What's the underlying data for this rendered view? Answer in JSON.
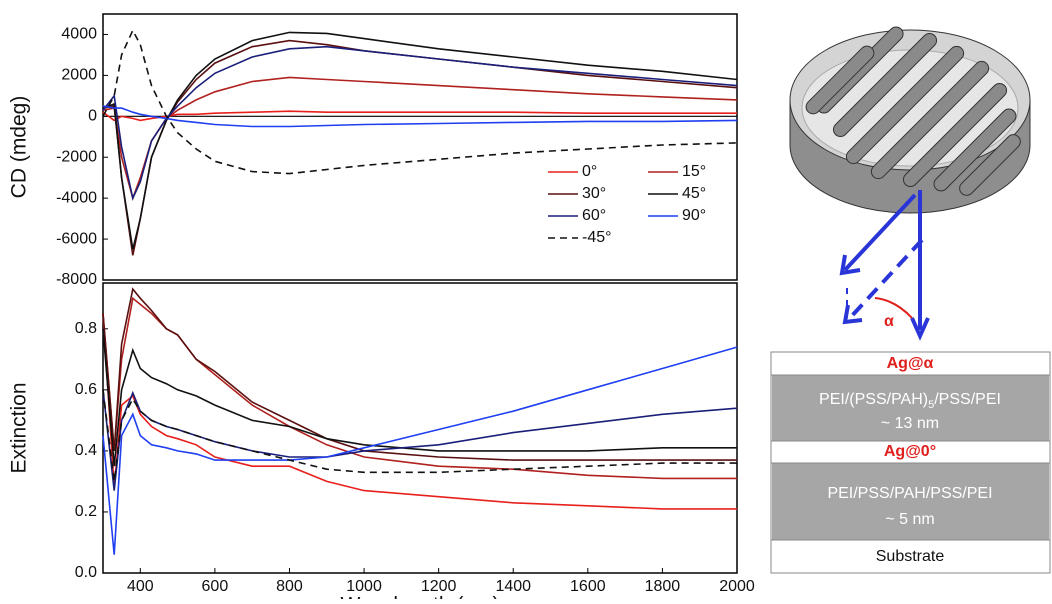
{
  "chart_data": [
    {
      "type": "line",
      "y_label": "CD (mdeg)",
      "x": [
        300,
        330,
        350,
        380,
        400,
        430,
        470,
        500,
        550,
        600,
        700,
        800,
        900,
        1000,
        1200,
        1400,
        1600,
        1800,
        2000
      ],
      "xlim": [
        300,
        2000
      ],
      "ylim": [
        -8000,
        5000
      ],
      "yticks": [
        -8000,
        -6000,
        -4000,
        -2000,
        0,
        2000,
        4000
      ],
      "legend": "lower-right",
      "series": [
        {
          "name": "0°",
          "color": "#e8201c",
          "values": [
            200,
            -200,
            0,
            -100,
            -200,
            -100,
            0,
            100,
            100,
            150,
            200,
            250,
            200,
            200,
            200,
            200,
            150,
            150,
            150
          ]
        },
        {
          "name": "15°",
          "color": "#b0211f",
          "values": [
            300,
            400,
            -2000,
            -4000,
            -3000,
            -1200,
            -100,
            300,
            800,
            1200,
            1700,
            1900,
            1800,
            1700,
            1500,
            1300,
            1100,
            950,
            800
          ]
        },
        {
          "name": "30°",
          "color": "#5a1010",
          "values": [
            400,
            500,
            -3000,
            -6800,
            -5000,
            -2000,
            -200,
            700,
            1800,
            2600,
            3400,
            3700,
            3500,
            3200,
            2800,
            2400,
            2000,
            1700,
            1400
          ]
        },
        {
          "name": "45°",
          "color": "#111111",
          "values": [
            400,
            600,
            -3000,
            -6500,
            -5000,
            -2000,
            -200,
            800,
            2000,
            2800,
            3700,
            4100,
            4050,
            3800,
            3300,
            2900,
            2500,
            2200,
            1800
          ]
        },
        {
          "name": "60°",
          "color": "#1a1f7a",
          "values": [
            300,
            1000,
            -1500,
            -4000,
            -3200,
            -1200,
            -100,
            500,
            1400,
            2100,
            2900,
            3300,
            3400,
            3200,
            2800,
            2400,
            2100,
            1800,
            1500
          ]
        },
        {
          "name": "90°",
          "color": "#1f3ff0",
          "values": [
            500,
            400,
            400,
            200,
            100,
            0,
            -100,
            -200,
            -300,
            -400,
            -500,
            -500,
            -450,
            -400,
            -350,
            -300,
            -250,
            -250,
            -200
          ]
        },
        {
          "name": "-45°",
          "color": "#111111",
          "line_style": "dashed",
          "values": [
            0,
            1000,
            3000,
            4200,
            3500,
            1500,
            0,
            -800,
            -1600,
            -2200,
            -2700,
            -2800,
            -2600,
            -2400,
            -2100,
            -1800,
            -1600,
            -1400,
            -1300
          ]
        }
      ]
    },
    {
      "type": "line",
      "y_label": "Extinction",
      "x_label": "Wavelength (nm)",
      "x": [
        300,
        330,
        350,
        380,
        400,
        430,
        470,
        500,
        550,
        600,
        700,
        800,
        900,
        1000,
        1200,
        1400,
        1600,
        1800,
        2000
      ],
      "xlim": [
        300,
        2000
      ],
      "ylim": [
        0,
        0.95
      ],
      "xticks": [
        400,
        600,
        800,
        1000,
        1200,
        1400,
        1600,
        1800,
        2000
      ],
      "yticks": [
        {
          "value": 0,
          "label": "0.0"
        },
        0.2,
        0.4,
        0.6,
        0.8
      ],
      "series": [
        {
          "color": "#e8201c",
          "values": [
            0.85,
            0.28,
            0.55,
            0.58,
            0.52,
            0.48,
            0.45,
            0.44,
            0.42,
            0.38,
            0.35,
            0.35,
            0.3,
            0.27,
            0.25,
            0.23,
            0.22,
            0.21,
            0.21
          ]
        },
        {
          "color": "#b0211f",
          "values": [
            0.85,
            0.4,
            0.7,
            0.9,
            0.88,
            0.85,
            0.8,
            0.78,
            0.7,
            0.65,
            0.55,
            0.48,
            0.42,
            0.38,
            0.35,
            0.34,
            0.32,
            0.31,
            0.31
          ]
        },
        {
          "color": "#5a1010",
          "values": [
            0.85,
            0.4,
            0.75,
            0.93,
            0.9,
            0.86,
            0.8,
            0.78,
            0.7,
            0.66,
            0.56,
            0.5,
            0.44,
            0.4,
            0.38,
            0.37,
            0.37,
            0.37,
            0.37
          ]
        },
        {
          "color": "#111111",
          "values": [
            0.8,
            0.35,
            0.6,
            0.73,
            0.67,
            0.64,
            0.62,
            0.6,
            0.58,
            0.55,
            0.5,
            0.48,
            0.44,
            0.42,
            0.4,
            0.4,
            0.4,
            0.41,
            0.41
          ]
        },
        {
          "color": "#1a1f7a",
          "values": [
            0.6,
            0.27,
            0.5,
            0.59,
            0.53,
            0.5,
            0.48,
            0.47,
            0.45,
            0.43,
            0.4,
            0.38,
            0.38,
            0.4,
            0.42,
            0.46,
            0.49,
            0.52,
            0.54
          ]
        },
        {
          "color": "#1f3ff0",
          "values": [
            0.45,
            0.06,
            0.45,
            0.52,
            0.45,
            0.42,
            0.41,
            0.4,
            0.39,
            0.37,
            0.37,
            0.37,
            0.38,
            0.41,
            0.47,
            0.53,
            0.6,
            0.67,
            0.74
          ]
        },
        {
          "color": "#111111",
          "line_style": "dashed",
          "values": [
            0.6,
            0.3,
            0.5,
            0.57,
            0.53,
            0.5,
            0.48,
            0.47,
            0.45,
            0.43,
            0.4,
            0.37,
            0.34,
            0.33,
            0.33,
            0.34,
            0.35,
            0.36,
            0.36
          ]
        }
      ]
    }
  ],
  "diagram": {
    "angle": "α",
    "layers": [
      {
        "text": "Ag@α"
      },
      {
        "parts": [
          "PEI/(PSS/PAH)",
          "5",
          "/PSS/PEI"
        ],
        "thickness": "~ 13 nm"
      },
      {
        "text": "Ag@0°"
      },
      {
        "text": "PEI/PSS/PAH/PSS/PEI",
        "thickness": "~ 5 nm"
      },
      {
        "text": "Substrate"
      }
    ]
  }
}
